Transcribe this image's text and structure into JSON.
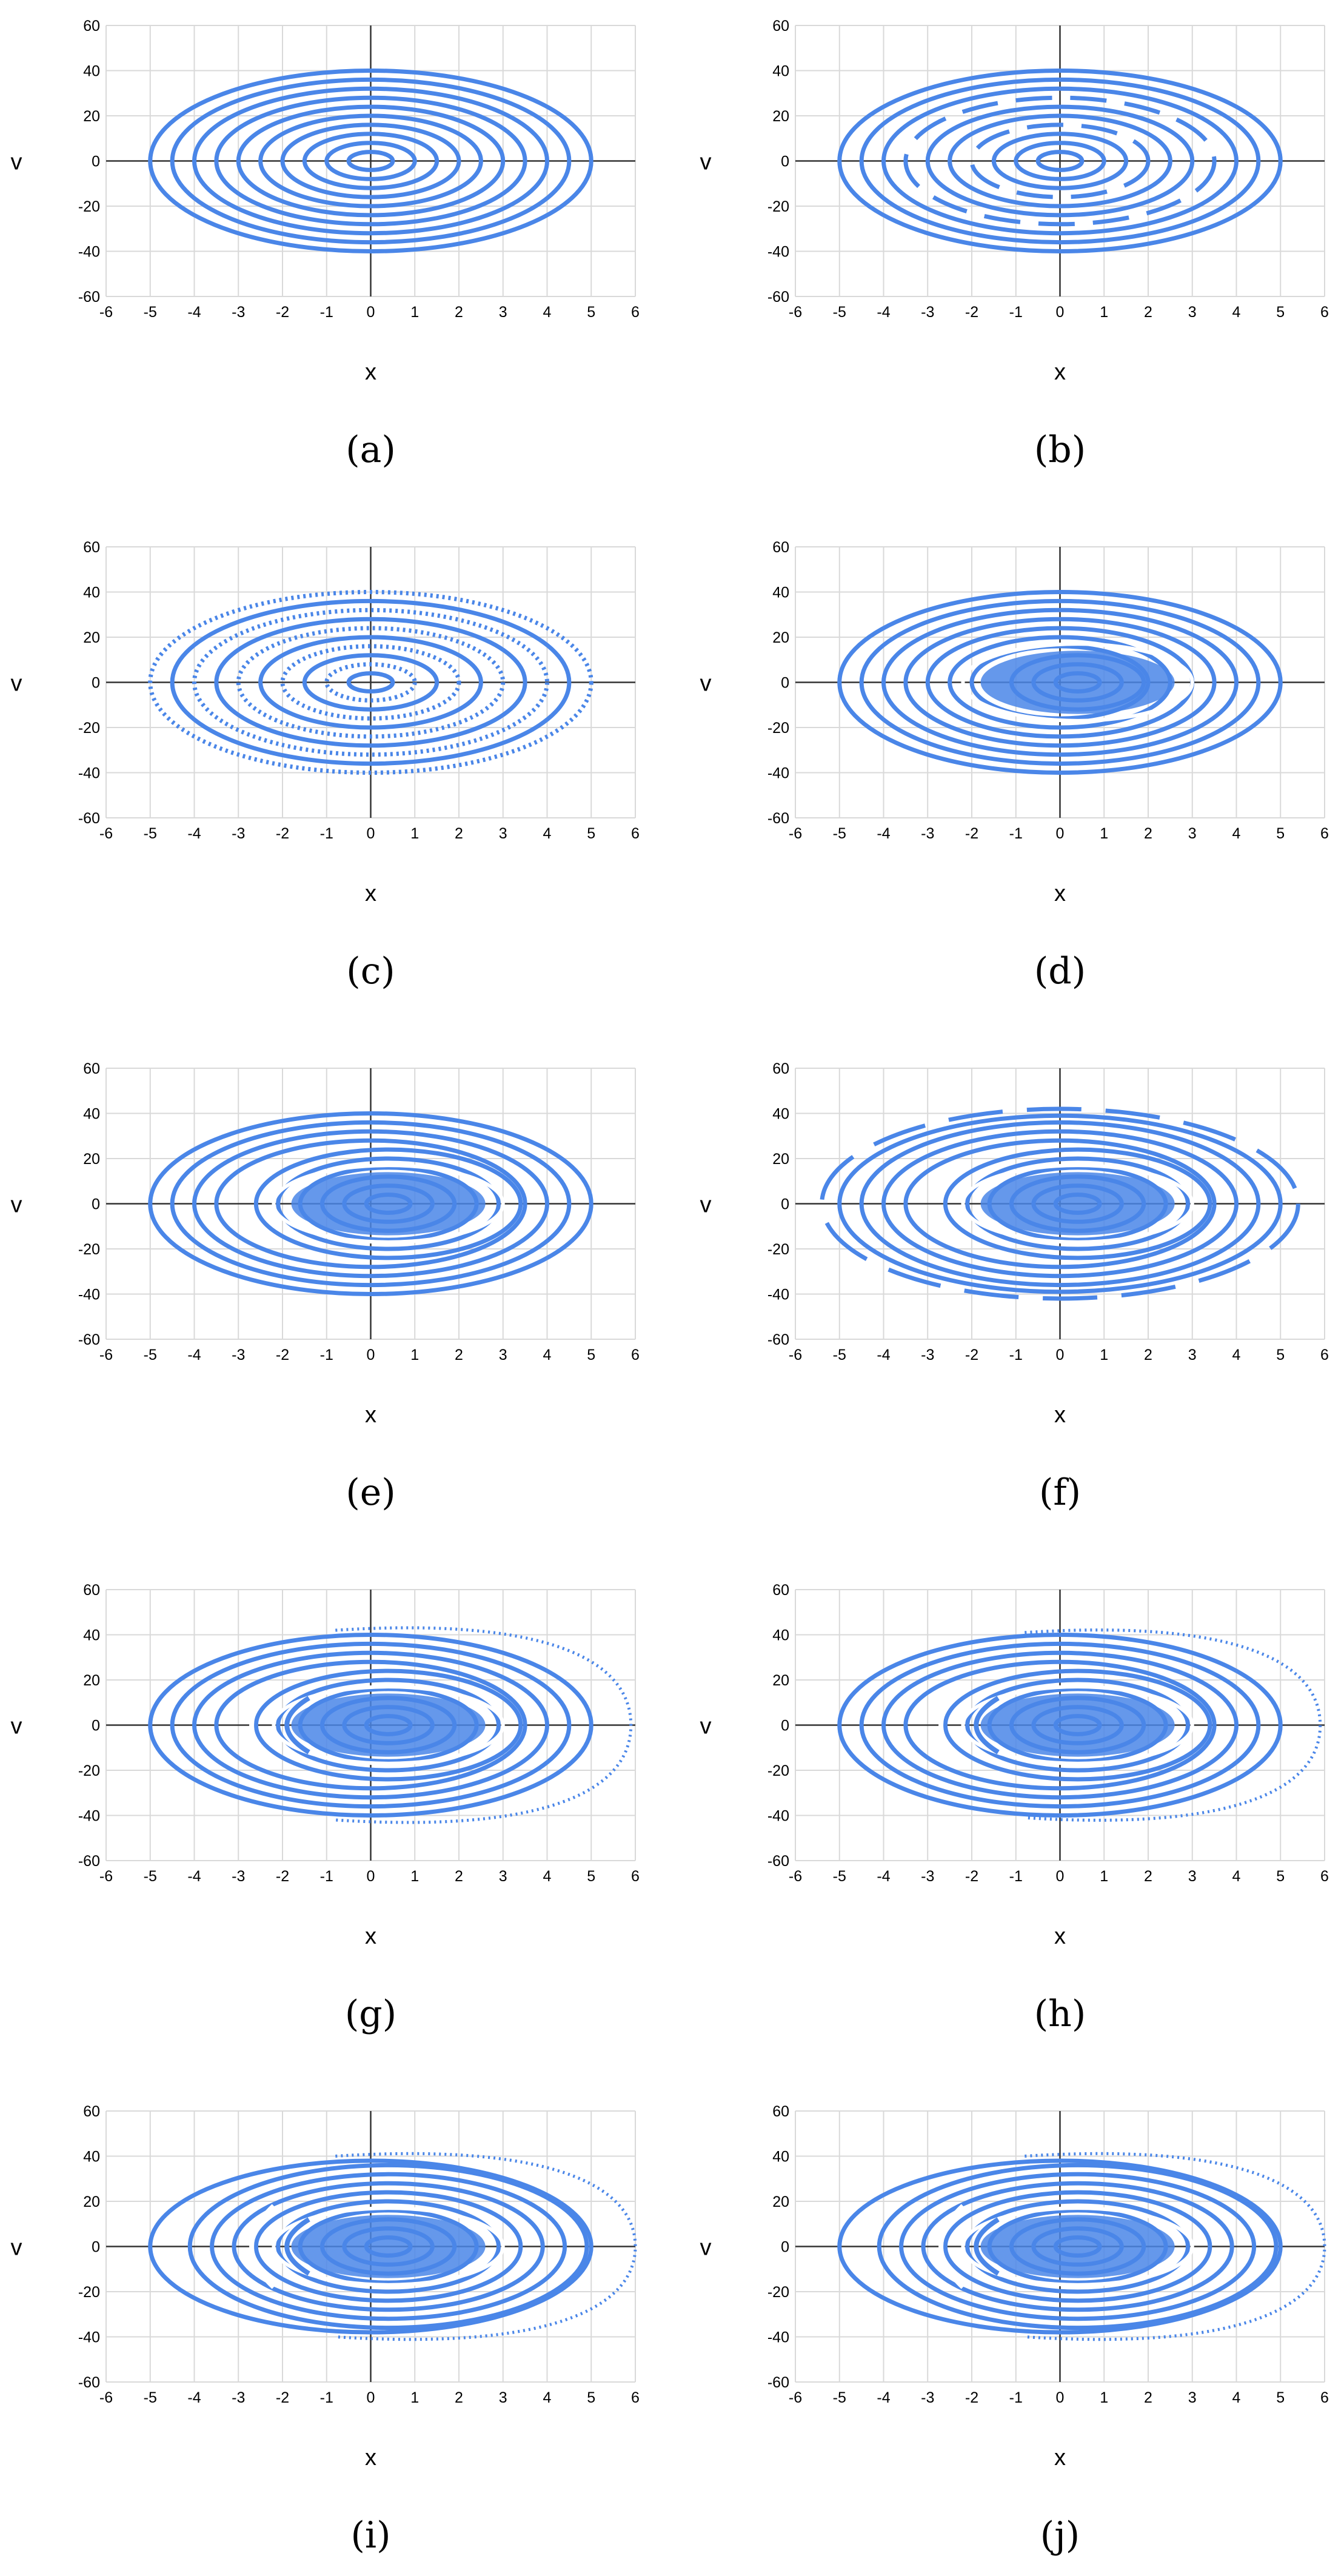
{
  "figure": {
    "panels": [
      {
        "letter": "a",
        "mode": "regular",
        "inner": 0,
        "green": false,
        "outer_arc": false
      },
      {
        "letter": "b",
        "mode": "regular",
        "inner": 0,
        "green": false,
        "outer_arc": false,
        "gaps": true
      },
      {
        "letter": "c",
        "mode": "regular",
        "inner": 0,
        "green": false,
        "outer_arc": false,
        "dotted": true
      },
      {
        "letter": "d",
        "mode": "mixed",
        "inner": 1,
        "green": false,
        "outer_arc": false
      },
      {
        "letter": "e",
        "mode": "mixed",
        "inner": 2,
        "green": false,
        "outer_arc": false
      },
      {
        "letter": "f",
        "mode": "mixed",
        "inner": 2,
        "green": false,
        "outer_arc": false,
        "dashes": true
      },
      {
        "letter": "g",
        "mode": "chaotic",
        "inner": 2,
        "green": false,
        "outer_arc": true
      },
      {
        "letter": "h",
        "mode": "chaotic",
        "inner": 2,
        "green": false,
        "outer_arc": true
      },
      {
        "letter": "i",
        "mode": "chaotic",
        "inner": 3,
        "green": false,
        "outer_arc": true
      },
      {
        "letter": "j",
        "mode": "chaotic",
        "inner": 3,
        "green": false,
        "outer_arc": true
      }
    ]
  },
  "chart_data": [
    {
      "type": "scatter",
      "panel": "a",
      "xlabel": "x",
      "ylabel": "v",
      "xlim": [
        -6,
        6
      ],
      "ylim": [
        -60,
        60
      ],
      "xticks": [
        -6,
        -5,
        -4,
        -3,
        -2,
        -1,
        0,
        1,
        2,
        3,
        4,
        5,
        6
      ],
      "yticks": [
        60,
        40,
        20,
        0,
        -20,
        -40,
        -60
      ],
      "grid": true,
      "color": "#4a86e8",
      "caption": "(a)",
      "orbit_amplitudes_x": [
        0.5,
        1,
        1.5,
        2,
        2.5,
        3,
        3.5,
        4,
        4.5,
        5
      ],
      "orbit_amplitudes_v": [
        4,
        8,
        12,
        16,
        20,
        24,
        28,
        32,
        36,
        40
      ]
    },
    {
      "type": "scatter",
      "panel": "b",
      "xlabel": "x",
      "ylabel": "v",
      "xlim": [
        -6,
        6
      ],
      "ylim": [
        -60,
        60
      ],
      "xticks": [
        -6,
        -5,
        -4,
        -3,
        -2,
        -1,
        0,
        1,
        2,
        3,
        4,
        5,
        6
      ],
      "yticks": [
        60,
        40,
        20,
        0,
        -20,
        -40,
        -60
      ],
      "grid": true,
      "color": "#4a86e8",
      "caption": "(b)",
      "orbit_amplitudes_x": [
        0.5,
        1,
        1.5,
        2,
        2.5,
        3,
        3.5,
        4,
        4.5,
        5
      ],
      "orbit_amplitudes_v": [
        4,
        8,
        12,
        16,
        20,
        24,
        28,
        32,
        36,
        40
      ]
    },
    {
      "type": "scatter",
      "panel": "c",
      "xlabel": "x",
      "ylabel": "v",
      "xlim": [
        -6,
        6
      ],
      "ylim": [
        -60,
        60
      ],
      "xticks": [
        -6,
        -5,
        -4,
        -3,
        -2,
        -1,
        0,
        1,
        2,
        3,
        4,
        5,
        6
      ],
      "yticks": [
        60,
        40,
        20,
        0,
        -20,
        -40,
        -60
      ],
      "grid": true,
      "color": "#4a86e8",
      "caption": "(c)",
      "orbit_amplitudes_x": [
        0.5,
        1,
        1.5,
        2,
        2.5,
        3,
        3.5,
        4,
        4.5,
        5
      ],
      "orbit_amplitudes_v": [
        4,
        8,
        12,
        16,
        20,
        24,
        28,
        32,
        36,
        40
      ]
    },
    {
      "type": "scatter",
      "panel": "d",
      "xlabel": "x",
      "ylabel": "v",
      "xlim": [
        -6,
        6
      ],
      "ylim": [
        -60,
        60
      ],
      "xticks": [
        -6,
        -5,
        -4,
        -3,
        -2,
        -1,
        0,
        1,
        2,
        3,
        4,
        5,
        6
      ],
      "yticks": [
        60,
        40,
        20,
        0,
        -20,
        -40,
        -60
      ],
      "grid": true,
      "color": "#4a86e8",
      "caption": "(d)",
      "orbit_amplitudes_x": [
        0.5,
        1,
        1.5,
        2,
        2.5,
        3,
        3.5,
        4,
        4.5,
        5
      ],
      "orbit_amplitudes_v": [
        4,
        8,
        12,
        16,
        20,
        24,
        28,
        32,
        36,
        40
      ]
    },
    {
      "type": "scatter",
      "panel": "e",
      "xlabel": "x",
      "ylabel": "v",
      "xlim": [
        -6,
        6
      ],
      "ylim": [
        -60,
        60
      ],
      "xticks": [
        -6,
        -5,
        -4,
        -3,
        -2,
        -1,
        0,
        1,
        2,
        3,
        4,
        5,
        6
      ],
      "yticks": [
        60,
        40,
        20,
        0,
        -20,
        -40,
        -60
      ],
      "grid": true,
      "color": "#4a86e8",
      "caption": "(e)",
      "orbit_amplitudes_x": [
        0.5,
        1,
        1.5,
        2,
        2.5,
        3,
        3.5,
        4,
        4.5,
        5
      ],
      "orbit_amplitudes_v": [
        4,
        8,
        12,
        16,
        20,
        24,
        28,
        32,
        36,
        40
      ]
    },
    {
      "type": "scatter",
      "panel": "f",
      "xlabel": "x",
      "ylabel": "v",
      "xlim": [
        -6,
        6
      ],
      "ylim": [
        -60,
        60
      ],
      "xticks": [
        -6,
        -5,
        -4,
        -3,
        -2,
        -1,
        0,
        1,
        2,
        3,
        4,
        5,
        6
      ],
      "yticks": [
        60,
        40,
        20,
        0,
        -20,
        -40,
        -60
      ],
      "grid": true,
      "color": "#4a86e8",
      "caption": "(f)",
      "orbit_amplitudes_x": [
        0.5,
        1,
        1.5,
        2,
        2.5,
        3,
        3.5,
        4,
        4.5,
        5,
        5.4
      ],
      "orbit_amplitudes_v": [
        4,
        8,
        12,
        16,
        20,
        24,
        28,
        32,
        36,
        39,
        42
      ]
    },
    {
      "type": "scatter",
      "panel": "g",
      "xlabel": "x",
      "ylabel": "v",
      "xlim": [
        -6,
        6
      ],
      "ylim": [
        -60,
        60
      ],
      "xticks": [
        -6,
        -5,
        -4,
        -3,
        -2,
        -1,
        0,
        1,
        2,
        3,
        4,
        5,
        6
      ],
      "yticks": [
        60,
        40,
        20,
        0,
        -20,
        -40,
        -60
      ],
      "grid": true,
      "color": "#4a86e8",
      "caption": "(g)",
      "orbit_amplitudes_x": [
        0.5,
        1,
        1.5,
        2,
        2.5,
        3,
        3.5,
        4,
        4.5,
        5
      ],
      "orbit_amplitudes_v": [
        4,
        8,
        12,
        16,
        20,
        24,
        28,
        32,
        36,
        40
      ],
      "escape_arc_x_max": 5.9,
      "escape_arc_v_max": 48
    },
    {
      "type": "scatter",
      "panel": "h",
      "xlabel": "x",
      "ylabel": "v",
      "xlim": [
        -6,
        6
      ],
      "ylim": [
        -60,
        60
      ],
      "xticks": [
        -6,
        -5,
        -4,
        -3,
        -2,
        -1,
        0,
        1,
        2,
        3,
        4,
        5,
        6
      ],
      "yticks": [
        60,
        40,
        20,
        0,
        -20,
        -40,
        -60
      ],
      "grid": true,
      "color": "#4a86e8",
      "caption": "(h)",
      "orbit_amplitudes_x": [
        0.5,
        1,
        1.5,
        2,
        2.5,
        3,
        3.5,
        4,
        4.5,
        5
      ],
      "orbit_amplitudes_v": [
        4,
        8,
        12,
        16,
        20,
        24,
        28,
        32,
        36,
        40
      ],
      "escape_arc_x_max": 5.9,
      "escape_arc_v_max": 47
    },
    {
      "type": "scatter",
      "panel": "i",
      "xlabel": "x",
      "ylabel": "v",
      "xlim": [
        -6,
        6
      ],
      "ylim": [
        -60,
        60
      ],
      "xticks": [
        -6,
        -5,
        -4,
        -3,
        -2,
        -1,
        0,
        1,
        2,
        3,
        4,
        5,
        6
      ],
      "yticks": [
        60,
        40,
        20,
        0,
        -20,
        -40,
        -60
      ],
      "grid": true,
      "color": "#4a86e8",
      "caption": "(i)",
      "orbit_amplitudes_x": [
        0.5,
        1,
        1.5,
        2,
        2.5,
        3,
        3.5,
        4,
        4.5,
        5
      ],
      "orbit_amplitudes_v": [
        4,
        8,
        12,
        16,
        20,
        24,
        28,
        32,
        36,
        38
      ],
      "escape_arc_x_max": 6,
      "escape_arc_v_max": 46
    },
    {
      "type": "scatter",
      "panel": "j",
      "xlabel": "x",
      "ylabel": "v",
      "xlim": [
        -6,
        6
      ],
      "ylim": [
        -60,
        60
      ],
      "xticks": [
        -6,
        -5,
        -4,
        -3,
        -2,
        -1,
        0,
        1,
        2,
        3,
        4,
        5,
        6
      ],
      "yticks": [
        60,
        40,
        20,
        0,
        -20,
        -40,
        -60
      ],
      "grid": true,
      "color": "#4a86e8",
      "caption": "(j)",
      "orbit_amplitudes_x": [
        0.5,
        1,
        1.5,
        2,
        2.5,
        3,
        3.5,
        4,
        4.5,
        5
      ],
      "orbit_amplitudes_v": [
        4,
        8,
        12,
        16,
        20,
        24,
        28,
        32,
        36,
        38
      ],
      "escape_arc_x_max": 6,
      "escape_arc_v_max": 46
    }
  ]
}
